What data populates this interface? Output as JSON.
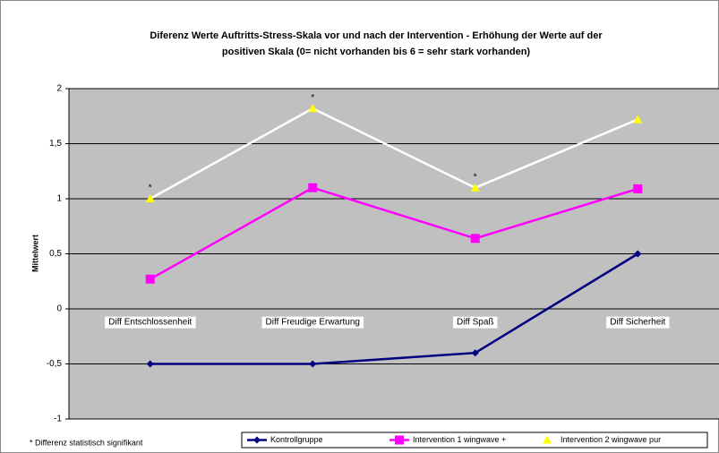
{
  "chart_data": {
    "type": "line",
    "title": "Diferenz Werte Auftritts-Stress-Skala vor und nach der Intervention - Erhöhung der Werte auf der",
    "subtitle": "positiven Skala (0= nicht vorhanden bis 6 = sehr stark vorhanden)",
    "y_label": "Mittelwert",
    "categories": [
      "Diff Entschlossenheit",
      "Diff Freudige Erwartung",
      "Diff Spaß",
      "Diff Sicherheit"
    ],
    "series": [
      {
        "name": "Kontrollgruppe",
        "color": "#000080",
        "marker": "diamond",
        "marker_color": "#000080",
        "values": [
          -0.5,
          -0.5,
          -0.4,
          0.5
        ]
      },
      {
        "name": "Intervention 1 wingwave +",
        "color": "#ff00ff",
        "marker": "square",
        "marker_color": "#ff00ff",
        "values": [
          0.27,
          1.1,
          0.64,
          1.09
        ]
      },
      {
        "name": "Intervention 2  wingwave pur",
        "color": "#ffffff",
        "marker": "triangle",
        "marker_color": "#ffff00",
        "values": [
          1.0,
          1.82,
          1.1,
          1.72
        ]
      }
    ],
    "annotations": [
      {
        "text": "*",
        "x": "Diff Entschlossenheit"
      },
      {
        "text": "*",
        "x": "Diff Freudige Erwartung"
      },
      {
        "text": "*",
        "x": "Diff Spaß"
      }
    ],
    "footnote": "* Differenz statistisch signifikant",
    "ylim": [
      -1,
      2
    ],
    "yticks": [
      -1,
      {
        "value": -0.5,
        "label": "-0,5"
      },
      0,
      {
        "value": 0.5,
        "label": "0,5"
      },
      1,
      {
        "value": 1.5,
        "label": "1,5"
      },
      2
    ],
    "grid": true,
    "plot_background": "#c0c0c0",
    "legend": "bottom"
  }
}
